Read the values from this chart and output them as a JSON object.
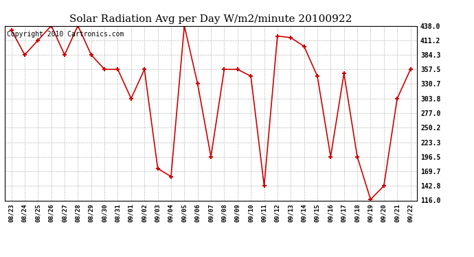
{
  "title": "Solar Radiation Avg per Day W/m2/minute 20100922",
  "copyright_text": "Copyright 2010 Cartronics.com",
  "dates": [
    "08/23",
    "08/24",
    "08/25",
    "08/26",
    "08/27",
    "08/28",
    "08/29",
    "08/30",
    "08/31",
    "09/01",
    "09/02",
    "09/03",
    "09/04",
    "09/05",
    "09/06",
    "09/07",
    "09/08",
    "09/09",
    "09/10",
    "09/11",
    "09/12",
    "09/13",
    "09/14",
    "09/15",
    "09/16",
    "09/17",
    "09/18",
    "09/19",
    "09/20",
    "09/21",
    "09/22"
  ],
  "values": [
    430.0,
    384.3,
    411.2,
    438.0,
    384.3,
    438.0,
    384.3,
    357.5,
    357.5,
    303.8,
    357.5,
    175.0,
    160.0,
    438.0,
    330.7,
    196.5,
    357.5,
    357.5,
    345.0,
    143.0,
    419.0,
    416.0,
    400.0,
    345.0,
    196.5,
    350.0,
    196.5,
    118.0,
    142.8,
    303.8,
    357.5
  ],
  "line_color": "#cc0000",
  "marker_color": "#cc0000",
  "bg_color": "#ffffff",
  "grid_color": "#aaaaaa",
  "ylim_min": 116.0,
  "ylim_max": 438.0,
  "yticks": [
    116.0,
    142.8,
    169.7,
    196.5,
    223.3,
    250.2,
    277.0,
    303.8,
    330.7,
    357.5,
    384.3,
    411.2,
    438.0
  ],
  "title_fontsize": 11,
  "copyright_fontsize": 7,
  "fig_width": 6.9,
  "fig_height": 3.75,
  "dpi": 100
}
